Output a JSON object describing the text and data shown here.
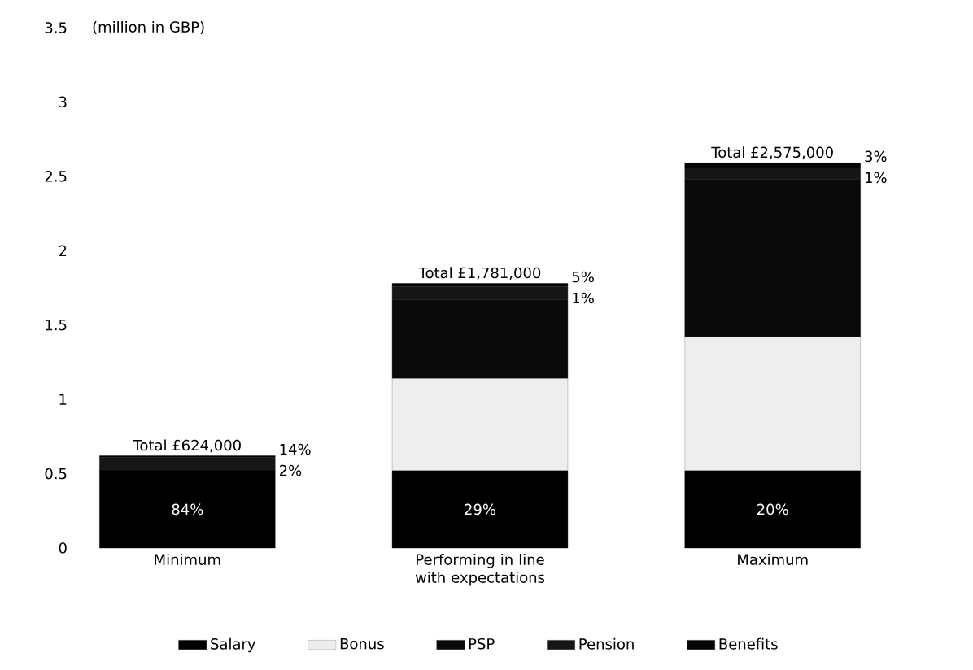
{
  "chart_data": {
    "type": "bar",
    "stacked": true,
    "ylabel": "(million in GBP)",
    "categories": [
      "Minimum",
      "Performing in line with expectations",
      "Maximum"
    ],
    "series": [
      {
        "name": "Salary",
        "color": "#000000",
        "values": [
          0.52,
          0.52,
          0.52
        ]
      },
      {
        "name": "Bonus",
        "color": "#eeeeee",
        "values": [
          0,
          0.62,
          0.9
        ]
      },
      {
        "name": "PSP",
        "color": "#0a0a0a",
        "values": [
          0,
          0.53,
          1.06
        ]
      },
      {
        "name": "Pension",
        "color": "#161616",
        "values": [
          0.09,
          0.09,
          0.08
        ]
      },
      {
        "name": "Benefits",
        "color": "#050505",
        "values": [
          0.01,
          0.02,
          0.03
        ]
      }
    ],
    "totals": [
      "Total £624,000",
      "Total £1,781,000",
      "Total £2,575,000"
    ],
    "annotations": [
      "84%",
      "14%",
      "2%",
      "29%",
      "5%",
      "1%",
      "20%",
      "3%",
      "1%"
    ],
    "ylim": [
      0,
      3.5
    ],
    "yticks": [
      0,
      0.5,
      1,
      1.5,
      2,
      2.5,
      3,
      3.5
    ],
    "legend": "bottom"
  }
}
